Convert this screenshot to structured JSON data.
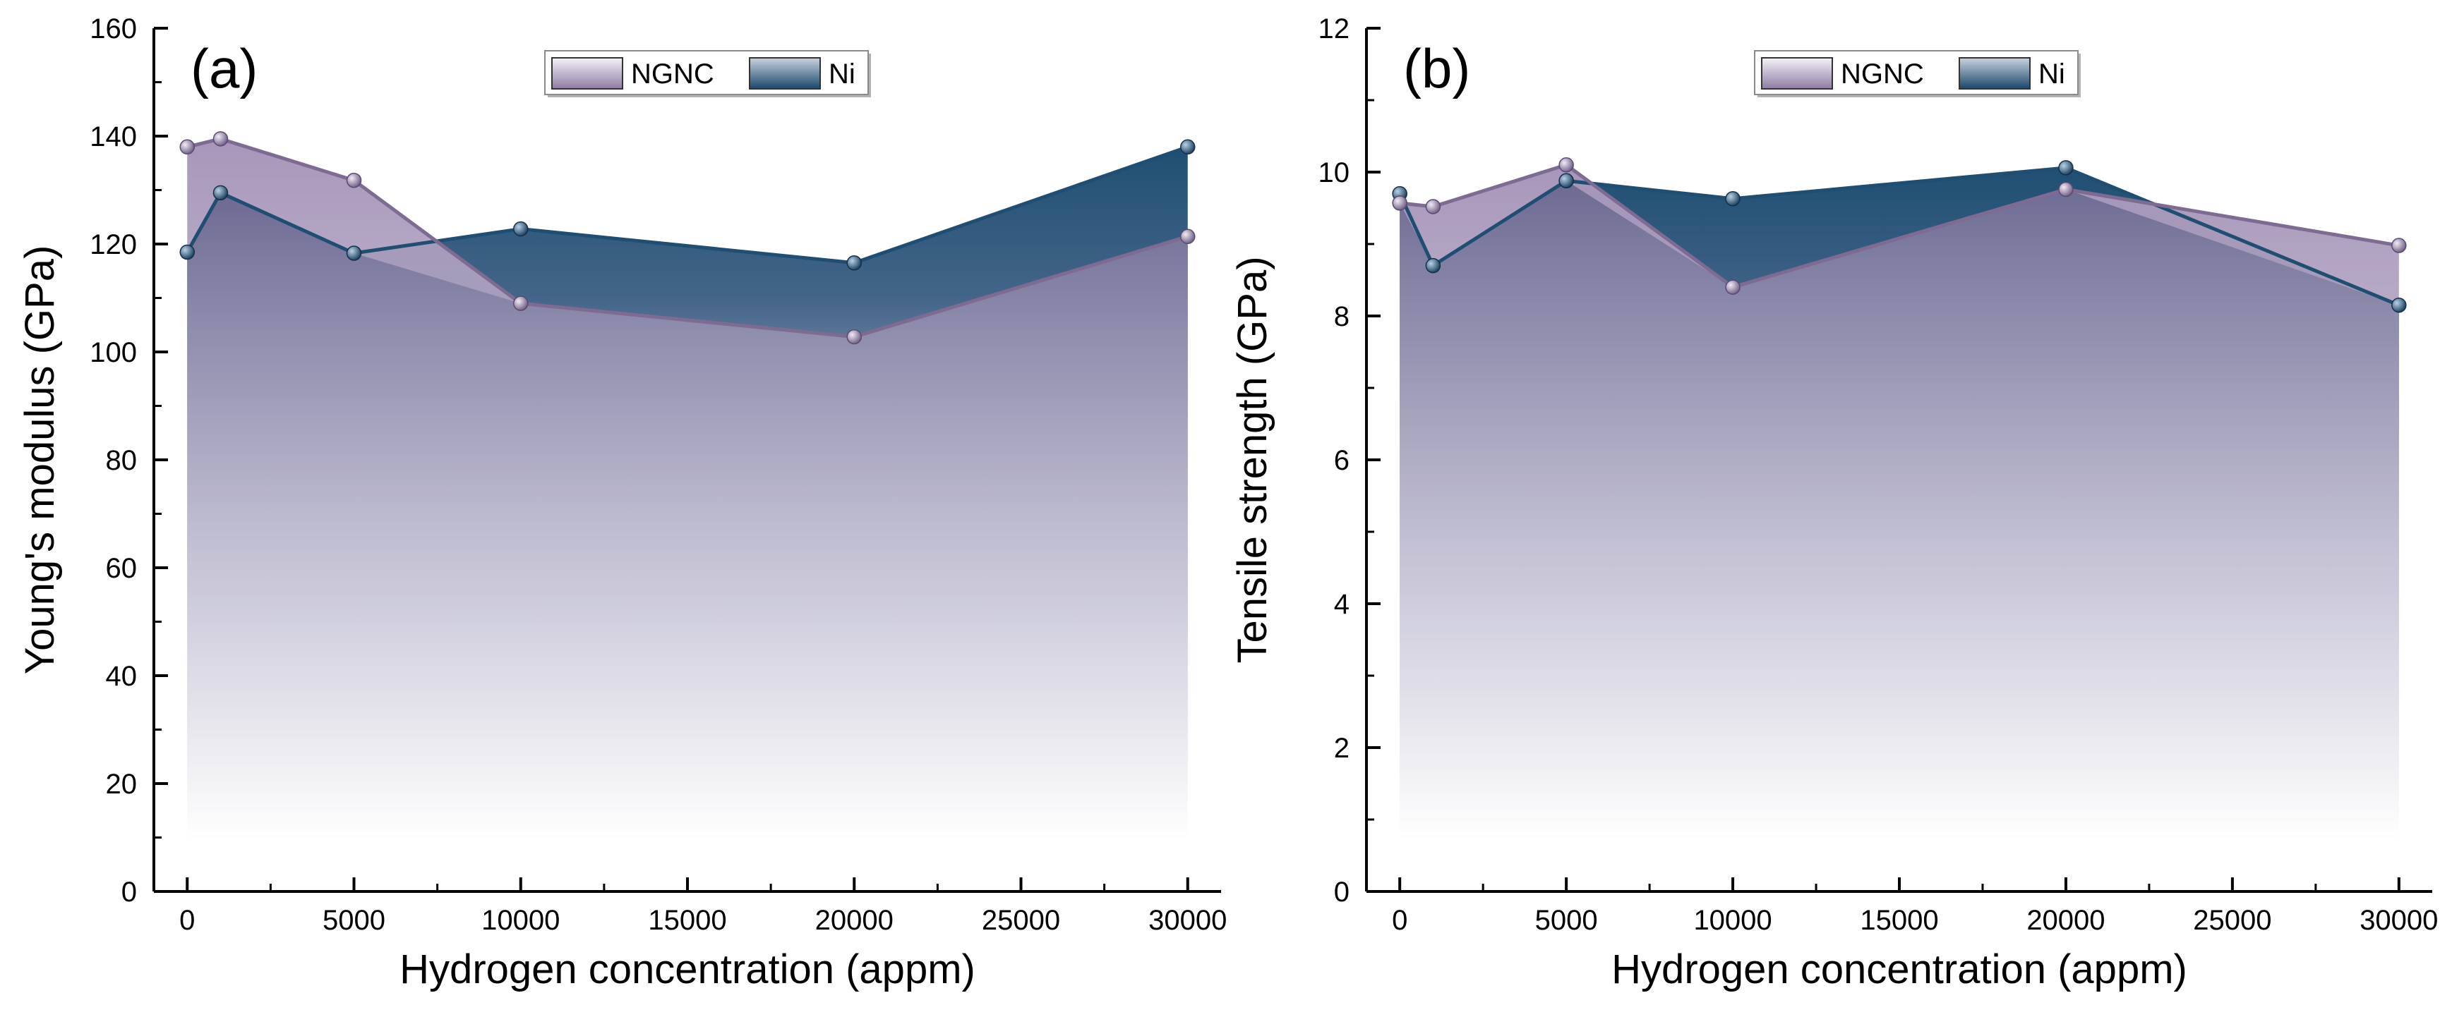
{
  "legend": {
    "ngnc_label": "NGNC",
    "ni_label": "Ni"
  },
  "colors": {
    "ngnc": "#7d6b92",
    "ni": "#1f4e72",
    "ngnc_fill": "#a393b6",
    "ni_fill": "#30567a",
    "axis": "#000000"
  },
  "chart_data": [
    {
      "type": "area",
      "panel_label": "(a)",
      "xlabel": "Hydrogen concentration (appm)",
      "ylabel": "Young's modulus (GPa)",
      "xlim": [
        -1000,
        31000
      ],
      "ylim": [
        0,
        160
      ],
      "xticks": [
        0,
        5000,
        10000,
        15000,
        20000,
        25000,
        30000
      ],
      "yticks": [
        0,
        20,
        40,
        60,
        80,
        100,
        120,
        140,
        160
      ],
      "x": [
        0,
        1000,
        5000,
        10000,
        20000,
        30000
      ],
      "series": [
        {
          "name": "NGNC",
          "values": [
            138,
            139.5,
            131.8,
            109,
            102.8,
            121.4
          ]
        },
        {
          "name": "Ni",
          "values": [
            118.5,
            129.5,
            118.3,
            122.8,
            116.5,
            138
          ]
        }
      ]
    },
    {
      "type": "area",
      "panel_label": "(b)",
      "xlabel": "Hydrogen concentration (appm)",
      "ylabel": "Tensile strength (GPa)",
      "xlim": [
        -1000,
        31000
      ],
      "ylim": [
        0,
        12
      ],
      "xticks": [
        0,
        5000,
        10000,
        15000,
        20000,
        25000,
        30000
      ],
      "yticks": [
        0,
        2,
        4,
        6,
        8,
        10,
        12
      ],
      "x": [
        0,
        1000,
        5000,
        10000,
        20000,
        30000
      ],
      "series": [
        {
          "name": "NGNC",
          "values": [
            9.57,
            9.52,
            10.1,
            8.4,
            9.76,
            8.98
          ]
        },
        {
          "name": "Ni",
          "values": [
            9.7,
            8.7,
            9.88,
            9.63,
            10.06,
            8.15
          ]
        }
      ]
    }
  ]
}
